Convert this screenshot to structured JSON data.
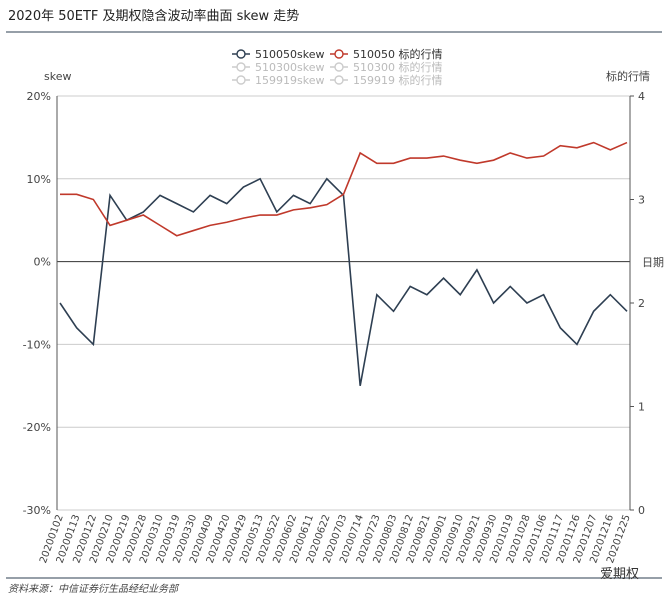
{
  "chart_data": {
    "type": "line",
    "title": "2020年 50ETF 及期权隐含波动率曲面 skew 走势",
    "y_label": "skew",
    "y2_label": "标的行情",
    "x_label": "日期",
    "source": "资料来源：中信证券衍生品经纪业务部",
    "watermark": "爱期权",
    "categories": [
      "20200102",
      "20200113",
      "20200122",
      "20200210",
      "20200219",
      "20200228",
      "20200310",
      "20200319",
      "20200330",
      "20200409",
      "20200420",
      "20200429",
      "20200513",
      "20200522",
      "20200602",
      "20200611",
      "20200622",
      "20200703",
      "20200714",
      "20200723",
      "20200803",
      "20200812",
      "20200821",
      "20200901",
      "20200910",
      "20200921",
      "20200930",
      "20201019",
      "20201028",
      "20201106",
      "20201117",
      "20201126",
      "20201207",
      "20201216",
      "20201225"
    ],
    "series": [
      {
        "name": "510050skew",
        "color": "#2e3f52",
        "values": [
          -5,
          -8,
          -10,
          8,
          5,
          6,
          8,
          7,
          6,
          8,
          7,
          9,
          10,
          6,
          8,
          7,
          10,
          8,
          -15,
          -4,
          -6,
          -3,
          -4,
          -2,
          -4,
          -1,
          -5,
          -3,
          -5,
          -4,
          -8,
          -10,
          -6,
          -4,
          -6
        ]
      },
      {
        "name": "510050 标的行情",
        "color": "#c0392b",
        "axis": "y2",
        "values": [
          3.05,
          3.05,
          3.0,
          2.75,
          2.8,
          2.85,
          2.75,
          2.65,
          2.7,
          2.75,
          2.78,
          2.82,
          2.85,
          2.85,
          2.9,
          2.92,
          2.95,
          3.05,
          3.45,
          3.35,
          3.35,
          3.4,
          3.4,
          3.42,
          3.38,
          3.35,
          3.38,
          3.45,
          3.4,
          3.42,
          3.52,
          3.5,
          3.55,
          3.48,
          3.55
        ]
      }
    ],
    "legend_inactive": [
      "510300skew",
      "510300 标的行情",
      "159919skew",
      "159919 标的行情"
    ],
    "ylim": [
      -30,
      20
    ],
    "yticks": [
      {
        "value": -30,
        "label": "-30%"
      },
      {
        "value": -20,
        "label": "-20%"
      },
      {
        "value": -10,
        "label": "-10%"
      },
      {
        "value": 0,
        "label": "0%"
      },
      {
        "value": 10,
        "label": "10%"
      },
      {
        "value": 20,
        "label": "20%"
      }
    ],
    "y2lim": [
      0,
      4
    ],
    "y2ticks": [
      0,
      1,
      2,
      3,
      4
    ],
    "grid": true
  }
}
